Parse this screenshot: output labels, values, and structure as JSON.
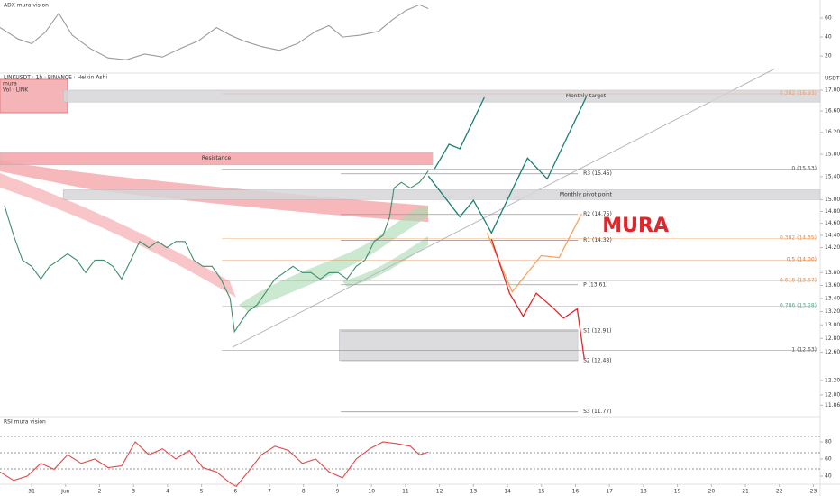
{
  "chart_data": [
    {
      "type": "line",
      "title": "LINKUSDT · 1h · BINANCE · Heikin Ashi",
      "axis_label": "USDT",
      "watermark": "MURA",
      "legend": [
        "mura",
        "Vol · LINK"
      ],
      "color": "#3f8f6a",
      "log": true,
      "x": [
        -0.8,
        -0.53,
        -0.27,
        0,
        0.27,
        0.53,
        0.8,
        1.06,
        1.33,
        1.59,
        1.86,
        2.12,
        2.39,
        2.65,
        2.92,
        3.18,
        3.45,
        3.71,
        3.98,
        4.24,
        4.51,
        4.77,
        5.04,
        5.31,
        5.57,
        5.84,
        5.97,
        6.1,
        6.37,
        6.63,
        6.9,
        7.16,
        7.43,
        7.69,
        7.96,
        8.22,
        8.49,
        8.75,
        9.02,
        9.28,
        9.55,
        9.81,
        10.08,
        10.34,
        10.53,
        10.66,
        10.88,
        11.14,
        11.41,
        11.67
      ],
      "values": [
        14.9,
        14.4,
        14.0,
        13.9,
        13.7,
        13.9,
        14.0,
        14.1,
        14.0,
        13.8,
        14.0,
        14.0,
        13.9,
        13.7,
        14.0,
        14.3,
        14.2,
        14.3,
        14.2,
        14.3,
        14.3,
        14.0,
        13.9,
        13.9,
        13.7,
        13.4,
        12.9,
        13.0,
        13.2,
        13.3,
        13.5,
        13.7,
        13.8,
        13.9,
        13.8,
        13.8,
        13.7,
        13.8,
        13.8,
        13.7,
        13.9,
        14.0,
        14.3,
        14.4,
        14.7,
        15.2,
        15.3,
        15.2,
        15.3,
        15.5
      ],
      "xlim": [
        -0.93,
        23.2
      ],
      "xticks": [
        {
          "value": 0,
          "label": "31"
        },
        {
          "value": 1,
          "label": "Jun"
        },
        2,
        3,
        4,
        5,
        6,
        7,
        8,
        9,
        10,
        11,
        12,
        13,
        14,
        15,
        16,
        17,
        18,
        19,
        20,
        21,
        22,
        23
      ],
      "ylim": [
        11.73,
        17.3
      ],
      "yticks": [
        {
          "value": 17,
          "label": "17.00"
        },
        {
          "value": 16.6,
          "label": "16.60"
        },
        {
          "value": 16.2,
          "label": "16.20"
        },
        {
          "value": 15.8,
          "label": "15.80"
        },
        {
          "value": 15.4,
          "label": "15.40"
        },
        {
          "value": 15,
          "label": "15.00"
        },
        {
          "value": 14.8,
          "label": "14.80"
        },
        {
          "value": 14.6,
          "label": "14.60"
        },
        {
          "value": 14.4,
          "label": "14.40"
        },
        {
          "value": 14.2,
          "label": "14.20"
        },
        {
          "value": 13.8,
          "label": "13.80"
        },
        {
          "value": 13.6,
          "label": "13.60"
        },
        {
          "value": 13.4,
          "label": "13.40"
        },
        {
          "value": 13.2,
          "label": "13.20"
        },
        {
          "value": 13,
          "label": "13.00"
        },
        {
          "value": 12.8,
          "label": "12.80"
        },
        {
          "value": 12.6,
          "label": "12.60"
        },
        {
          "value": 12.2,
          "label": "12.20"
        },
        {
          "value": 12,
          "label": "12.00"
        },
        {
          "value": 11.86,
          "label": "11.86"
        }
      ],
      "zones": [
        {
          "label": "Monthly target",
          "range": [
            16.77,
            17.0
          ],
          "x_range": [
            0.93,
            23.2
          ],
          "color": "#d6d6da"
        },
        {
          "label": "Resistance",
          "range": [
            15.61,
            15.84
          ],
          "x_range": [
            -0.93,
            11.8
          ],
          "color": "#f5a3a6"
        },
        {
          "label": "Monthly pivot point",
          "range": [
            15.0,
            15.17
          ],
          "x_range": [
            0.93,
            23.2
          ],
          "color": "#d6d6da"
        },
        {
          "range": [
            12.48,
            12.93
          ],
          "x_range": [
            9.05,
            16.07
          ],
          "color": "#d6d6da"
        }
      ],
      "pivots": [
        {
          "label": "R3 (15.45)",
          "value": 15.45
        },
        {
          "label": "R2 (14.75)",
          "value": 14.75
        },
        {
          "label": "R1 (14.32)",
          "value": 14.32
        },
        {
          "label": "P (13.61)",
          "value": 13.61
        },
        {
          "label": "S1 (12.91)",
          "value": 12.91
        },
        {
          "label": "S2 (12.48)",
          "value": 12.48
        },
        {
          "label": "S3 (11.77)",
          "value": 11.77
        }
      ],
      "fib": [
        {
          "label": "0.382 (16.93)",
          "value": 16.93,
          "color": "#f0a070"
        },
        {
          "label": "0 (15.53)",
          "value": 15.53,
          "color": "#555555"
        },
        {
          "label": "0.382 (14.35)",
          "value": 14.35,
          "color": "#f08c3c"
        },
        {
          "label": "0.5 (14.00)",
          "value": 14.0,
          "color": "#e8762b"
        },
        {
          "label": "0.618 (13.67)",
          "value": 13.67,
          "color": "#e09050"
        },
        {
          "label": "0.786 (13.28)",
          "value": 13.28,
          "color": "#5aa88a"
        },
        {
          "label": "1 (12.63)",
          "value": 12.63,
          "color": "#555555"
        }
      ],
      "drawings": [
        {
          "color": "#1b7f73",
          "x": [
            11.86,
            12.28,
            12.6,
            13.32
          ],
          "values": [
            15.54,
            15.98,
            15.9,
            16.86
          ]
        },
        {
          "color": "#1b7f73",
          "x": [
            11.67,
            12.6,
            13.0,
            13.53,
            14.59,
            15.17,
            16.31
          ],
          "values": [
            15.41,
            14.71,
            14.99,
            14.44,
            15.73,
            15.36,
            16.86
          ]
        },
        {
          "color": "#f7a35c",
          "x": [
            13.4,
            14.14,
            14.99,
            15.52,
            16.18
          ],
          "values": [
            14.44,
            13.5,
            14.07,
            14.04,
            14.76
          ]
        },
        {
          "color": "#e0262b",
          "x": [
            13.53,
            14.06,
            14.46,
            14.85,
            15.31,
            15.65,
            16.05,
            16.26
          ],
          "values": [
            14.34,
            13.48,
            13.13,
            13.48,
            13.27,
            13.1,
            13.24,
            12.5
          ]
        }
      ]
    },
    {
      "type": "line",
      "title": "ADX mura vision",
      "color": "#9a9aa0",
      "x": [
        -0.93,
        -0.4,
        0,
        0.4,
        0.8,
        1.19,
        1.72,
        2.25,
        2.79,
        3.32,
        3.85,
        4.38,
        4.91,
        5.44,
        5.84,
        6.23,
        6.76,
        7.29,
        7.82,
        8.36,
        8.75,
        9.15,
        9.68,
        10.21,
        10.61,
        11.01,
        11.41,
        11.67
      ],
      "values": [
        50,
        38,
        33,
        45,
        65,
        42,
        28,
        18,
        16,
        22,
        19,
        28,
        36,
        50,
        42,
        36,
        30,
        26,
        33,
        46,
        52,
        40,
        42,
        46,
        58,
        68,
        74,
        70
      ],
      "ylim": [
        3,
        79
      ],
      "yticks": [
        60,
        40,
        20
      ]
    },
    {
      "type": "line",
      "title": "RSI mura vision",
      "color": "#e04a4a",
      "x": [
        -0.93,
        -0.53,
        -0.13,
        0.27,
        0.66,
        1.06,
        1.46,
        1.86,
        2.25,
        2.65,
        3.05,
        3.45,
        3.85,
        4.24,
        4.64,
        5.04,
        5.44,
        5.84,
        6.02,
        6.37,
        6.76,
        7.16,
        7.56,
        7.96,
        8.36,
        8.75,
        9.15,
        9.55,
        9.95,
        10.34,
        10.74,
        11.14,
        11.41,
        11.67
      ],
      "values": [
        45,
        35,
        40,
        55,
        48,
        65,
        55,
        60,
        50,
        52,
        80,
        65,
        72,
        60,
        70,
        50,
        45,
        32,
        28,
        45,
        65,
        75,
        70,
        55,
        60,
        45,
        38,
        60,
        72,
        80,
        78,
        75,
        65,
        68
      ],
      "ylim": [
        20,
        100
      ],
      "yticks": [
        80,
        60,
        40
      ]
    }
  ]
}
